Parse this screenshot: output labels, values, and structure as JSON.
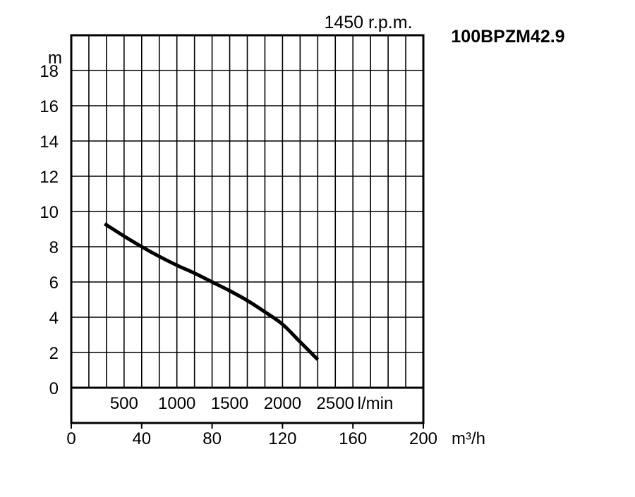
{
  "chart_data": {
    "type": "line",
    "title": "100BPZM42.9",
    "subtitle": "1450 r.p.m.",
    "ylabel": "m",
    "xlabel": "m³/h",
    "secondary_x_unit": "l/min",
    "ylim": [
      0,
      18
    ],
    "xlim": [
      0,
      200
    ],
    "y_ticks": [
      0,
      2,
      4,
      6,
      8,
      10,
      12,
      14,
      16,
      18
    ],
    "x_ticks": [
      0,
      40,
      80,
      120,
      160,
      200
    ],
    "flow_ticks": [
      500,
      1000,
      1500,
      2000,
      2500
    ],
    "grid": true,
    "series": [
      {
        "x": [
          19,
          30,
          40,
          50,
          60,
          70,
          80,
          90,
          100,
          110,
          120,
          130,
          140
        ],
        "y": [
          9.3,
          8.6,
          8.0,
          7.45,
          6.95,
          6.5,
          6.0,
          5.5,
          4.95,
          4.3,
          3.6,
          2.6,
          1.6
        ]
      }
    ],
    "colors": {
      "curve": "#000000",
      "grid": "#000000",
      "text": "#000000"
    }
  }
}
